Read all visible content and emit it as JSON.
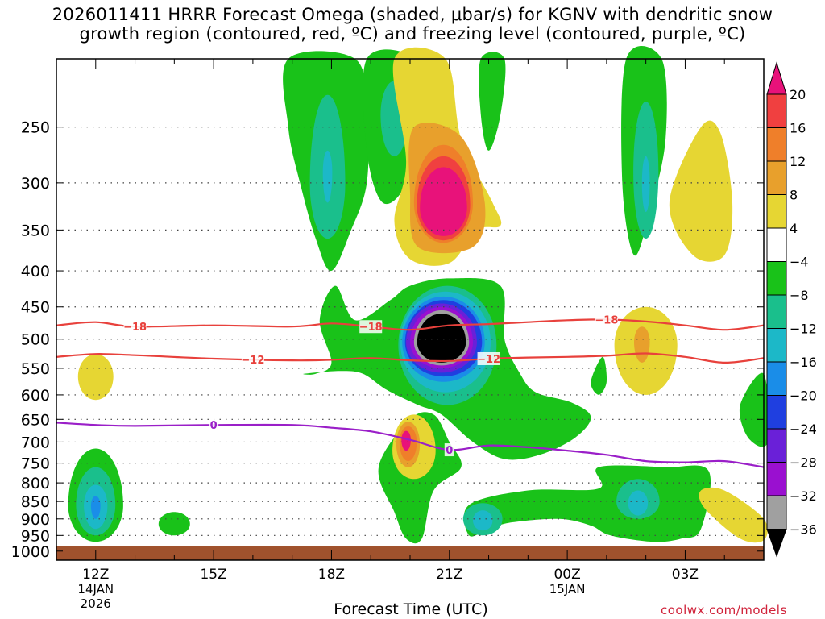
{
  "title": {
    "line1": "2026011411 HRRR Forecast Omega (shaded, μbar/s) for KGNV with dendritic snow",
    "line2": "growth region (contoured, red, ºC) and freezing level (contoured, purple, ºC)"
  },
  "credit": "coolwx.com/models",
  "colors": {
    "gt20": "#e8127a",
    "16_20": "#f04040",
    "12_16": "#ef7f2a",
    "8_12": "#e8a02c",
    "4_8": "#e6d633",
    "m4_4": "#ffffff",
    "m8_m4": "#19c219",
    "m12_m8": "#1abf8c",
    "m16_m12": "#1cb8c8",
    "m20_m16": "#1a8de8",
    "m24_m20": "#1f3fe0",
    "m28_m24": "#6a20d8",
    "m32_m28": "#9a10d0",
    "m36_m32": "#a0a0a0",
    "lt_m36": "#000000",
    "ground": "#a0522d",
    "snow_contour": "#e8413c",
    "freezing_contour": "#9a1fc8"
  },
  "chart_data": {
    "type": "heatmap",
    "xlabel": "Forecast Time (UTC)",
    "ylabel": "",
    "x_ticks": [
      {
        "label": "12Z",
        "sub1": "14JAN",
        "sub2": "2026",
        "hour": 0
      },
      {
        "label": "15Z",
        "sub1": "",
        "sub2": "",
        "hour": 3
      },
      {
        "label": "18Z",
        "sub1": "",
        "sub2": "",
        "hour": 6
      },
      {
        "label": "21Z",
        "sub1": "",
        "sub2": "",
        "hour": 9
      },
      {
        "label": "00Z",
        "sub1": "15JAN",
        "sub2": "",
        "hour": 12
      },
      {
        "label": "03Z",
        "sub1": "",
        "sub2": "",
        "hour": 15
      }
    ],
    "x_range_hours": [
      -1,
      17
    ],
    "y_ticks": [
      250,
      300,
      350,
      400,
      450,
      500,
      550,
      600,
      650,
      700,
      750,
      800,
      850,
      900,
      950,
      1000
    ],
    "y_range_hpa": [
      200,
      1030
    ],
    "y_scale": "log",
    "colorbar": {
      "labels": [
        "20",
        "16",
        "12",
        "8",
        "4",
        "−4",
        "−8",
        "−12",
        "−16",
        "−20",
        "−24",
        "−28",
        "−32",
        "−36"
      ],
      "boundaries": [
        20,
        16,
        12,
        8,
        4,
        -4,
        -8,
        -12,
        -16,
        -20,
        -24,
        -28,
        -32,
        -36
      ],
      "colors": [
        "gt20",
        "16_20",
        "12_16",
        "8_12",
        "4_8",
        "m4_4",
        "m8_m4",
        "m12_m8",
        "m16_m12",
        "m20_m16",
        "m24_m20",
        "m28_m24",
        "m32_m28",
        "m36_m32",
        "lt_m36"
      ]
    },
    "contours": [
      {
        "name": "-18",
        "label": "−18",
        "color": "snow_contour",
        "points": [
          [
            -1,
            478
          ],
          [
            0,
            473
          ],
          [
            1,
            480
          ],
          [
            3,
            478
          ],
          [
            5,
            480
          ],
          [
            6,
            475
          ],
          [
            7,
            480
          ],
          [
            8,
            485
          ],
          [
            9,
            478
          ],
          [
            10,
            476
          ],
          [
            11,
            473
          ],
          [
            12,
            470
          ],
          [
            13,
            469
          ],
          [
            14,
            472
          ],
          [
            15,
            478
          ],
          [
            16,
            485
          ],
          [
            17,
            478
          ]
        ],
        "label_hours": [
          1,
          7,
          13
        ]
      },
      {
        "name": "-12",
        "label": "−12",
        "color": "snow_contour",
        "points": [
          [
            -1,
            530
          ],
          [
            0,
            525
          ],
          [
            1,
            527
          ],
          [
            3,
            533
          ],
          [
            5,
            536
          ],
          [
            6,
            535
          ],
          [
            7,
            532
          ],
          [
            8,
            536
          ],
          [
            9,
            537
          ],
          [
            10,
            533
          ],
          [
            11,
            531
          ],
          [
            12,
            530
          ],
          [
            13,
            528
          ],
          [
            14,
            524
          ],
          [
            15,
            530
          ],
          [
            16,
            540
          ],
          [
            17,
            532
          ]
        ],
        "label_hours": [
          4,
          10
        ]
      },
      {
        "name": "0",
        "label": "0",
        "color": "freezing_contour",
        "points": [
          [
            -1,
            657
          ],
          [
            0,
            662
          ],
          [
            1,
            664
          ],
          [
            3,
            662
          ],
          [
            5,
            662
          ],
          [
            6,
            668
          ],
          [
            7,
            676
          ],
          [
            8,
            695
          ],
          [
            9,
            718
          ],
          [
            10,
            708
          ],
          [
            11,
            712
          ],
          [
            12,
            720
          ],
          [
            13,
            730
          ],
          [
            14,
            745
          ],
          [
            15,
            748
          ],
          [
            16,
            745
          ],
          [
            17,
            760
          ]
        ],
        "label_hours": [
          3,
          9
        ]
      }
    ]
  }
}
